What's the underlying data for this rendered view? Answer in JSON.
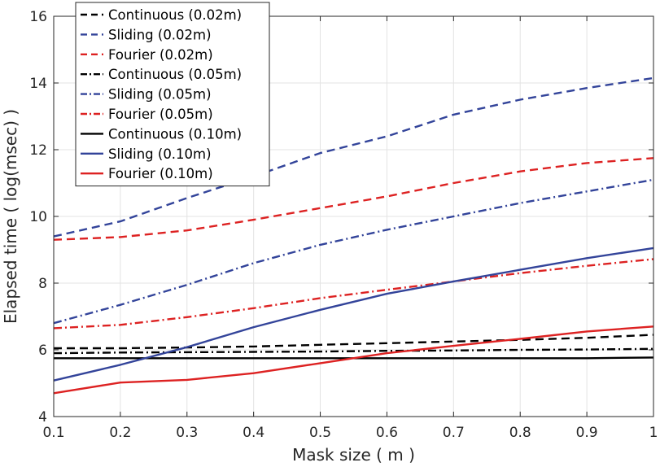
{
  "chart_data": {
    "type": "line",
    "title": "",
    "xlabel": "Mask size ( m )",
    "ylabel": "Elapsed time ( log(msec) )",
    "xlim": [
      0.1,
      1
    ],
    "ylim": [
      4,
      16
    ],
    "xticks": [
      0.1,
      0.2,
      0.3,
      0.4,
      0.5,
      0.6,
      0.7,
      0.8,
      0.9,
      1
    ],
    "xtick_labels": [
      "0.1",
      "0.2",
      "0.3",
      "0.4",
      "0.5",
      "0.6",
      "0.7",
      "0.8",
      "0.9",
      "1"
    ],
    "yticks": [
      4,
      6,
      8,
      10,
      12,
      14,
      16
    ],
    "ytick_labels": [
      "4",
      "6",
      "8",
      "10",
      "12",
      "14",
      "16"
    ],
    "grid": true,
    "legend_position": "top-left",
    "x": [
      0.1,
      0.2,
      0.3,
      0.4,
      0.5,
      0.6,
      0.7,
      0.8,
      0.9,
      1
    ],
    "series": [
      {
        "name": "Continuous (0.02m)",
        "color": "#000000",
        "dash": "dashed",
        "values": [
          6.05,
          6.05,
          6.07,
          6.1,
          6.15,
          6.2,
          6.25,
          6.3,
          6.36,
          6.45
        ]
      },
      {
        "name": "Sliding (0.02m)",
        "color": "#33449a",
        "dash": "dashed",
        "values": [
          9.4,
          9.85,
          10.55,
          11.2,
          11.9,
          12.4,
          13.05,
          13.5,
          13.85,
          14.15
        ]
      },
      {
        "name": "Fourier (0.02m)",
        "color": "#dd2222",
        "dash": "dashed",
        "values": [
          9.3,
          9.38,
          9.58,
          9.9,
          10.25,
          10.6,
          11.0,
          11.35,
          11.6,
          11.75
        ]
      },
      {
        "name": "Continuous (0.05m)",
        "color": "#000000",
        "dash": "dashdot",
        "values": [
          5.9,
          5.92,
          5.93,
          5.94,
          5.95,
          5.97,
          5.98,
          6.0,
          6.01,
          6.03
        ]
      },
      {
        "name": "Sliding (0.05m)",
        "color": "#33449a",
        "dash": "dashdot",
        "values": [
          6.8,
          7.35,
          7.95,
          8.6,
          9.15,
          9.6,
          10.0,
          10.4,
          10.75,
          11.1
        ]
      },
      {
        "name": "Fourier (0.05m)",
        "color": "#dd2222",
        "dash": "dashdot",
        "values": [
          6.65,
          6.75,
          6.98,
          7.25,
          7.55,
          7.8,
          8.05,
          8.3,
          8.52,
          8.72
        ]
      },
      {
        "name": "Continuous (0.10m)",
        "color": "#000000",
        "dash": "solid",
        "values": [
          5.75,
          5.75,
          5.75,
          5.75,
          5.75,
          5.75,
          5.75,
          5.75,
          5.75,
          5.77
        ]
      },
      {
        "name": "Sliding (0.10m)",
        "color": "#33449a",
        "dash": "solid",
        "values": [
          5.08,
          5.55,
          6.08,
          6.68,
          7.2,
          7.68,
          8.05,
          8.4,
          8.75,
          9.05
        ]
      },
      {
        "name": "Fourier (0.10m)",
        "color": "#dd2222",
        "dash": "solid",
        "values": [
          4.7,
          5.02,
          5.1,
          5.3,
          5.6,
          5.9,
          6.12,
          6.33,
          6.55,
          6.7
        ]
      }
    ]
  }
}
